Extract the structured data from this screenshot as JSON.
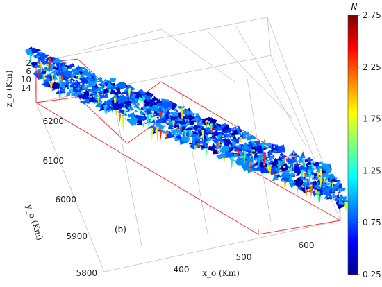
{
  "chart_data": {
    "type": "scatter",
    "kind": "3d-isosurface",
    "title": "",
    "annotation": "(b)",
    "xlabel": "x_o (Km)",
    "ylabel": "y_o (Km)",
    "zlabel": "z_o (Km)",
    "x_ticks": [
      "400",
      "500",
      "600"
    ],
    "y_ticks": [
      "5800",
      "5900",
      "6000",
      "6100",
      "6200"
    ],
    "z_ticks": [
      "2",
      "6",
      "10",
      "14"
    ],
    "xlim": [
      330,
      660
    ],
    "ylim": [
      5790,
      6230
    ],
    "zlim": [
      2,
      14
    ],
    "zdirection": "reversed",
    "grid": true,
    "colorbar": {
      "title": "N",
      "colormap": "jet",
      "min": 0.25,
      "max": 2.75,
      "ticks": [
        "0.25",
        "0.75",
        "1.25",
        "1.75",
        "2.25",
        "2.75"
      ]
    },
    "overlay": "red outline of study region (prism)"
  }
}
